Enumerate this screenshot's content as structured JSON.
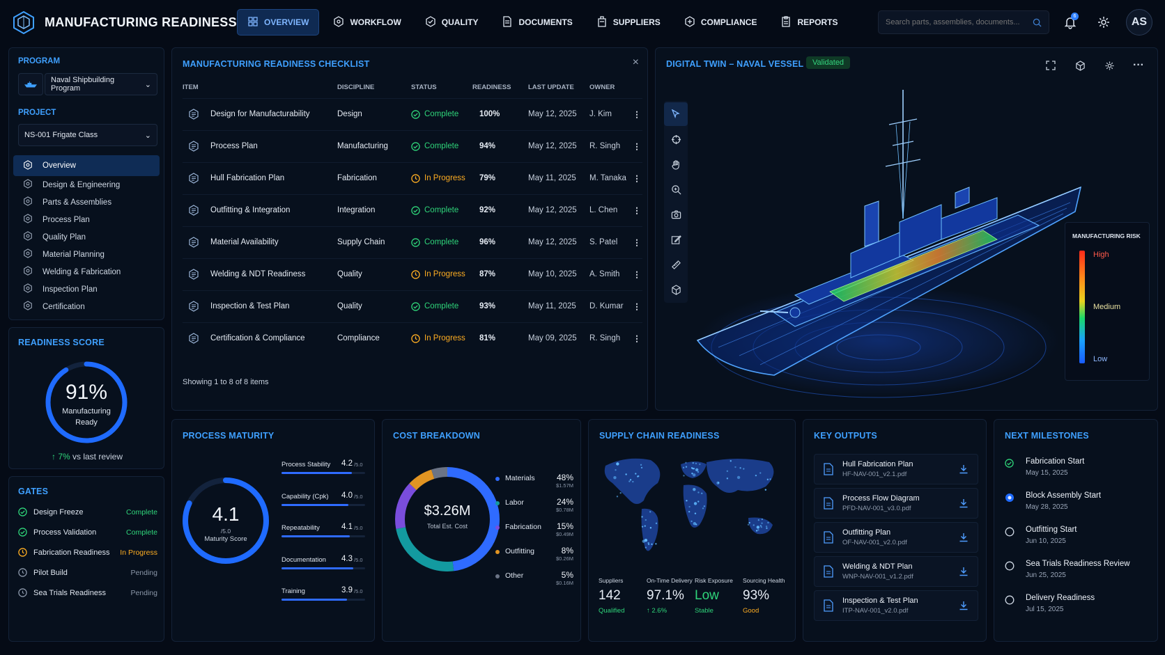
{
  "app": {
    "title": "MANUFACTURING READINESS"
  },
  "nav": [
    {
      "label": "OVERVIEW",
      "icon": "grid-icon",
      "active": true
    },
    {
      "label": "WORKFLOW",
      "icon": "workflow-icon"
    },
    {
      "label": "QUALITY",
      "icon": "quality-icon"
    },
    {
      "label": "DOCUMENTS",
      "icon": "documents-icon"
    },
    {
      "label": "SUPPLIERS",
      "icon": "suppliers-icon"
    },
    {
      "label": "COMPLIANCE",
      "icon": "compliance-icon"
    },
    {
      "label": "REPORTS",
      "icon": "reports-icon"
    }
  ],
  "search": {
    "placeholder": "Search parts, assemblies, documents..."
  },
  "user": {
    "initials": "AS",
    "notifications": "6"
  },
  "sidebar": {
    "program_label": "PROGRAM",
    "program_value": "Naval Shipbuilding Program",
    "project_label": "PROJECT",
    "project_value": "NS-001 Frigate Class",
    "items": [
      {
        "label": "Overview",
        "active": true
      },
      {
        "label": "Design & Engineering"
      },
      {
        "label": "Parts & Assemblies"
      },
      {
        "label": "Process Plan"
      },
      {
        "label": "Quality Plan"
      },
      {
        "label": "Material Planning"
      },
      {
        "label": "Welding & Fabrication"
      },
      {
        "label": "Inspection Plan"
      },
      {
        "label": "Certification"
      }
    ]
  },
  "readiness": {
    "title": "READINESS SCORE",
    "value": "91%",
    "fraction": 0.91,
    "caption1": "Manufacturing",
    "caption2": "Ready",
    "delta": "7%",
    "delta_text": "vs last review"
  },
  "gates": {
    "title": "GATES",
    "items": [
      {
        "label": "Design Freeze",
        "status": "Complete",
        "state": "complete"
      },
      {
        "label": "Process Validation",
        "status": "Complete",
        "state": "complete"
      },
      {
        "label": "Fabrication Readiness",
        "status": "In Progress",
        "state": "progress"
      },
      {
        "label": "Pilot Build",
        "status": "Pending",
        "state": "pending"
      },
      {
        "label": "Sea Trials Readiness",
        "status": "Pending",
        "state": "pending"
      }
    ]
  },
  "checklist": {
    "title": "MANUFACTURING READINESS CHECKLIST",
    "columns": [
      "ITEM",
      "DISCIPLINE",
      "STATUS",
      "READINESS",
      "LAST UPDATE",
      "OWNER"
    ],
    "rows": [
      {
        "item": "Design for Manufacturability",
        "discipline": "Design",
        "status": "Complete",
        "state": "complete",
        "readiness": "100%",
        "update": "May 12, 2025",
        "owner": "J. Kim"
      },
      {
        "item": "Process Plan",
        "discipline": "Manufacturing",
        "status": "Complete",
        "state": "complete",
        "readiness": "94%",
        "update": "May 12, 2025",
        "owner": "R. Singh"
      },
      {
        "item": "Hull Fabrication Plan",
        "discipline": "Fabrication",
        "status": "In Progress",
        "state": "progress",
        "readiness": "79%",
        "update": "May 11, 2025",
        "owner": "M. Tanaka"
      },
      {
        "item": "Outfitting & Integration",
        "discipline": "Integration",
        "status": "Complete",
        "state": "complete",
        "readiness": "92%",
        "update": "May 12, 2025",
        "owner": "L. Chen"
      },
      {
        "item": "Material Availability",
        "discipline": "Supply Chain",
        "status": "Complete",
        "state": "complete",
        "readiness": "96%",
        "update": "May 12, 2025",
        "owner": "S. Patel"
      },
      {
        "item": "Welding & NDT Readiness",
        "discipline": "Quality",
        "status": "In Progress",
        "state": "progress",
        "readiness": "87%",
        "update": "May 10, 2025",
        "owner": "A. Smith"
      },
      {
        "item": "Inspection & Test Plan",
        "discipline": "Quality",
        "status": "Complete",
        "state": "complete",
        "readiness": "93%",
        "update": "May 11, 2025",
        "owner": "D. Kumar"
      },
      {
        "item": "Certification & Compliance",
        "discipline": "Compliance",
        "status": "In Progress",
        "state": "progress",
        "readiness": "81%",
        "update": "May 09, 2025",
        "owner": "R. Singh"
      }
    ],
    "footer": "Showing 1 to 8 of 8 items"
  },
  "twin": {
    "title": "DIGITAL TWIN – NAVAL VESSEL",
    "badge": "Validated",
    "legend_title": "MANUFACTURING RISK",
    "legend": [
      "High",
      "Medium",
      "Low"
    ],
    "colors": {
      "high": "#ff2a1a",
      "medium": "#e8d21e",
      "low": "#1a5cff"
    }
  },
  "maturity": {
    "title": "PROCESS MATURITY",
    "value": "4.1",
    "max": "/5.0",
    "fraction": 0.82,
    "caption": "Maturity Score",
    "items": [
      {
        "label": "Process Stability",
        "value": "4.2",
        "max": "/5.0",
        "fraction": 0.84
      },
      {
        "label": "Capability (Cpk)",
        "value": "4.0",
        "max": "/5.0",
        "fraction": 0.8
      },
      {
        "label": "Repeatability",
        "value": "4.1",
        "max": "/5.0",
        "fraction": 0.82
      },
      {
        "label": "Documentation",
        "value": "4.3",
        "max": "/5.0",
        "fraction": 0.86
      },
      {
        "label": "Training",
        "value": "3.9",
        "max": "/5.0",
        "fraction": 0.78
      }
    ]
  },
  "cost": {
    "title": "COST BREAKDOWN",
    "total": "$3.26M",
    "caption": "Total Est. Cost",
    "chart_data": {
      "type": "pie",
      "categories": [
        "Materials",
        "Labor",
        "Fabrication",
        "Outfitting",
        "Other"
      ],
      "values": [
        48,
        24,
        15,
        8,
        5
      ],
      "amounts": [
        "$1.57M",
        "$0.78M",
        "$0.49M",
        "$0.26M",
        "$0.16M"
      ],
      "labels": [
        "48%",
        "24%",
        "15%",
        "8%",
        "5%"
      ],
      "colors": [
        "#2f6bff",
        "#139aa0",
        "#7a4ddc",
        "#e19422",
        "#6b7486"
      ]
    }
  },
  "supply": {
    "title": "SUPPLY CHAIN READINESS",
    "stats": [
      {
        "label": "Suppliers",
        "value": "142",
        "sub": "Qualified",
        "sub_color": "#2fd57a",
        "value_color": "#e6ecf4"
      },
      {
        "label": "On-Time Delivery",
        "value": "97.1%",
        "sub": "↑ 2.6%",
        "sub_color": "#2fd57a",
        "value_color": "#e6ecf4"
      },
      {
        "label": "Risk Exposure",
        "value": "Low",
        "sub": "Stable",
        "sub_color": "#2fd57a",
        "value_color": "#2fd57a"
      },
      {
        "label": "Sourcing Health",
        "value": "93%",
        "sub": "Good",
        "sub_color": "#ffae22",
        "value_color": "#e6ecf4"
      }
    ]
  },
  "outputs": {
    "title": "KEY OUTPUTS",
    "items": [
      {
        "name": "Hull Fabrication Plan",
        "file": "HF-NAV-001_v2.1.pdf"
      },
      {
        "name": "Process Flow Diagram",
        "file": "PFD-NAV-001_v3.0.pdf"
      },
      {
        "name": "Outfitting Plan",
        "file": "OF-NAV-001_v2.0.pdf"
      },
      {
        "name": "Welding & NDT Plan",
        "file": "WNP-NAV-001_v1.2.pdf"
      },
      {
        "name": "Inspection & Test Plan",
        "file": "ITP-NAV-001_v2.0.pdf"
      }
    ]
  },
  "milestones": {
    "title": "NEXT MILESTONES",
    "items": [
      {
        "name": "Fabrication Start",
        "date": "May 15, 2025",
        "state": "done"
      },
      {
        "name": "Block Assembly Start",
        "date": "May 28, 2025",
        "state": "current"
      },
      {
        "name": "Outfitting Start",
        "date": "Jun 10, 2025",
        "state": "pending"
      },
      {
        "name": "Sea Trials Readiness Review",
        "date": "Jun 25, 2025",
        "state": "pending"
      },
      {
        "name": "Delivery Readiness",
        "date": "Jul 15, 2025",
        "state": "pending"
      }
    ]
  }
}
